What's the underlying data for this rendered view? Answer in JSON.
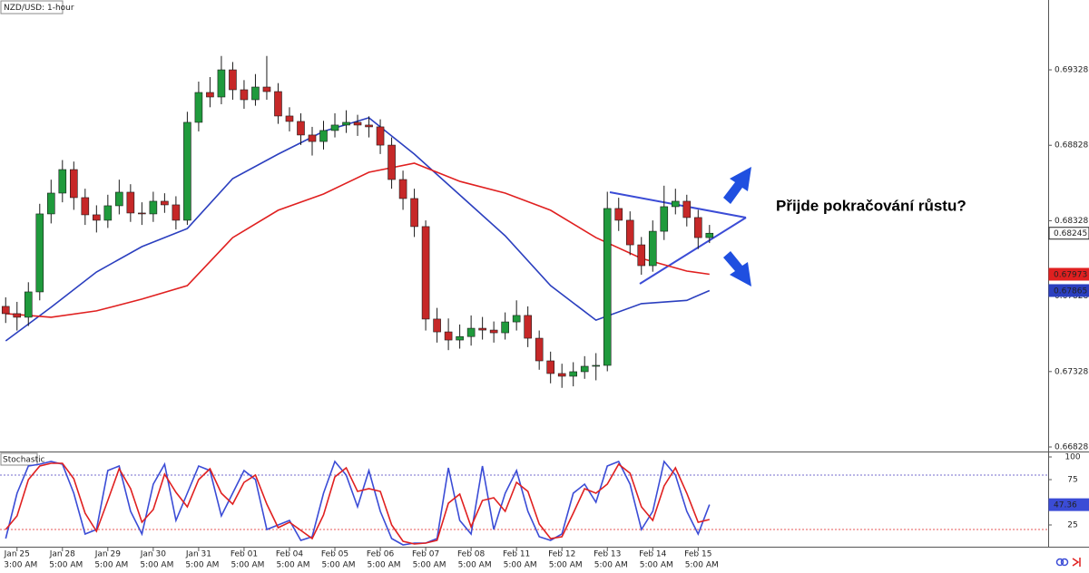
{
  "chart_data": [
    {
      "type": "candlestick",
      "title": "NZD/USD: 1-hour",
      "annotation": "Přijde pokračování růstu?",
      "up_color": "#1f9a3c",
      "down_color": "#c62828",
      "wick_color": "#1a1a1a",
      "xlim": [
        -3,
        551
      ],
      "ylim": [
        0.66804,
        0.69791
      ],
      "yticks": [
        0.66828,
        0.67328,
        0.67828,
        0.68328,
        0.68828,
        0.69328
      ],
      "xticks": [
        {
          "value": 6,
          "label": "Jan 25"
        },
        {
          "value": 30,
          "label": "Jan 28"
        },
        {
          "value": 54,
          "label": "Jan 29"
        },
        {
          "value": 78,
          "label": "Jan 30"
        },
        {
          "value": 102,
          "label": "Jan 31"
        },
        {
          "value": 126,
          "label": "Feb 01"
        },
        {
          "value": 150,
          "label": "Feb 04"
        },
        {
          "value": 174,
          "label": "Feb 05"
        },
        {
          "value": 198,
          "label": "Feb 06"
        },
        {
          "value": 222,
          "label": "Feb 07"
        },
        {
          "value": 246,
          "label": "Feb 08"
        },
        {
          "value": 270,
          "label": "Feb 11"
        },
        {
          "value": 294,
          "label": "Feb 12"
        },
        {
          "value": 318,
          "label": "Feb 13"
        },
        {
          "value": 342,
          "label": "Feb 14"
        },
        {
          "value": 366,
          "label": "Feb 15"
        }
      ],
      "xtick_sublabels": [
        "3:00 AM",
        "5:00 AM",
        "5:00 AM",
        "5:00 AM",
        "5:00 AM",
        "5:00 AM",
        "5:00 AM",
        "5:00 AM",
        "5:00 AM",
        "5:00 AM",
        "5:00 AM",
        "5:00 AM",
        "5:00 AM",
        "5:00 AM",
        "5:00 AM",
        "5:00 AM"
      ],
      "x": [
        0,
        6,
        12,
        18,
        24,
        30,
        36,
        42,
        48,
        54,
        60,
        66,
        72,
        78,
        84,
        90,
        96,
        102,
        108,
        114,
        120,
        126,
        132,
        138,
        144,
        150,
        156,
        162,
        168,
        174,
        180,
        186,
        192,
        198,
        204,
        210,
        216,
        222,
        228,
        234,
        240,
        246,
        252,
        258,
        264,
        270,
        276,
        282,
        288,
        294,
        300,
        306,
        312,
        318,
        324,
        330,
        336,
        342,
        348,
        354,
        360,
        366,
        372
      ],
      "open": [
        0.6776,
        0.67712,
        0.67688,
        0.67856,
        0.68373,
        0.68511,
        0.68667,
        0.68481,
        0.68367,
        0.68331,
        0.68427,
        0.68517,
        0.68379,
        0.68373,
        0.68457,
        0.68433,
        0.68331,
        0.6898,
        0.69178,
        0.69148,
        0.69328,
        0.69196,
        0.6913,
        0.69214,
        0.69184,
        0.69022,
        0.68986,
        0.68896,
        0.68853,
        0.68926,
        0.68962,
        0.6898,
        0.68962,
        0.6895,
        0.68829,
        0.68601,
        0.68475,
        0.68289,
        0.67676,
        0.67591,
        0.67537,
        0.6756,
        0.67615,
        0.67603,
        0.67585,
        0.67657,
        0.677,
        0.67549,
        0.67399,
        0.67315,
        0.67297,
        0.67327,
        0.67363,
        0.67369,
        0.68409,
        0.68331,
        0.68168,
        0.6803,
        0.68258,
        0.68421,
        0.68457,
        0.68349,
        0.68216
      ],
      "high": [
        0.6782,
        0.6779,
        0.6792,
        0.6844,
        0.686,
        0.6873,
        0.6872,
        0.6854,
        0.6843,
        0.685,
        0.686,
        0.6857,
        0.6845,
        0.6852,
        0.6851,
        0.6849,
        0.6905,
        0.6925,
        0.6928,
        0.6942,
        0.6938,
        0.6926,
        0.693,
        0.6942,
        0.6924,
        0.6908,
        0.6904,
        0.6895,
        0.6899,
        0.6904,
        0.6906,
        0.6903,
        0.6902,
        0.69,
        0.6888,
        0.6866,
        0.6854,
        0.6833,
        0.6775,
        0.6768,
        0.6764,
        0.677,
        0.6769,
        0.6766,
        0.6772,
        0.678,
        0.6776,
        0.676,
        0.6746,
        0.6738,
        0.6739,
        0.6743,
        0.6745,
        0.6852,
        0.6848,
        0.6839,
        0.6822,
        0.6833,
        0.6856,
        0.6854,
        0.685,
        0.684,
        0.683
      ],
      "low": [
        0.6765,
        0.676,
        0.6763,
        0.678,
        0.6831,
        0.6845,
        0.684,
        0.683,
        0.6825,
        0.6828,
        0.6837,
        0.6832,
        0.683,
        0.6832,
        0.6838,
        0.6827,
        0.683,
        0.6892,
        0.6908,
        0.691,
        0.6913,
        0.6907,
        0.6909,
        0.6913,
        0.6897,
        0.6892,
        0.6883,
        0.6876,
        0.688,
        0.6888,
        0.6891,
        0.6889,
        0.6888,
        0.6877,
        0.6854,
        0.684,
        0.6822,
        0.676,
        0.6752,
        0.6747,
        0.6748,
        0.675,
        0.6754,
        0.6752,
        0.6754,
        0.676,
        0.6749,
        0.6734,
        0.6725,
        0.6722,
        0.6723,
        0.6728,
        0.6727,
        0.6733,
        0.6826,
        0.681,
        0.6797,
        0.6799,
        0.682,
        0.6837,
        0.6829,
        0.6814,
        0.6818
      ],
      "close": [
        0.67712,
        0.67688,
        0.67856,
        0.68373,
        0.68511,
        0.68667,
        0.68481,
        0.68367,
        0.68331,
        0.68427,
        0.68517,
        0.68379,
        0.68373,
        0.68457,
        0.68433,
        0.68331,
        0.6898,
        0.69178,
        0.69148,
        0.69328,
        0.69196,
        0.6913,
        0.69214,
        0.69184,
        0.69022,
        0.68986,
        0.68896,
        0.68853,
        0.68926,
        0.68962,
        0.6898,
        0.68962,
        0.6895,
        0.68829,
        0.68601,
        0.68475,
        0.68289,
        0.67676,
        0.67591,
        0.67537,
        0.6756,
        0.67615,
        0.67603,
        0.67585,
        0.67657,
        0.677,
        0.67549,
        0.67399,
        0.67315,
        0.67297,
        0.67327,
        0.67363,
        0.67369,
        0.68409,
        0.68331,
        0.68168,
        0.6803,
        0.68258,
        0.68421,
        0.68457,
        0.68349,
        0.68216,
        0.68245
      ],
      "series": [
        {
          "color": "#2b3fbf",
          "x": [
            0,
            24,
            48,
            72,
            96,
            120,
            144,
            168,
            192,
            216,
            240,
            264,
            288,
            312,
            336,
            360,
            372
          ],
          "values": [
            0.67531,
            0.67754,
            0.67988,
            0.68156,
            0.68276,
            0.68607,
            0.68769,
            0.6892,
            0.6901,
            0.68769,
            0.68499,
            0.68228,
            0.67898,
            0.67669,
            0.67778,
            0.678,
            0.67865
          ]
        },
        {
          "color": "#e02020",
          "x": [
            0,
            24,
            48,
            72,
            96,
            120,
            144,
            168,
            192,
            216,
            240,
            264,
            288,
            312,
            336,
            360,
            372
          ],
          "values": [
            0.67712,
            0.67688,
            0.6773,
            0.67808,
            0.67898,
            0.68216,
            0.68397,
            0.68505,
            0.68649,
            0.68709,
            0.68589,
            0.68511,
            0.68397,
            0.68216,
            0.68078,
            0.67994,
            0.67973
          ]
        }
      ]
    },
    {
      "type": "line",
      "title": "Stochastic",
      "xlim": [
        -3,
        551
      ],
      "ylim": [
        0,
        104
      ],
      "yticks": [
        25,
        50,
        75,
        100
      ],
      "levels": [
        80,
        20
      ],
      "level_colors": [
        "#4a3fbf",
        "#e02020"
      ],
      "x": [
        0,
        6,
        12,
        18,
        24,
        30,
        36,
        42,
        48,
        54,
        60,
        66,
        72,
        78,
        84,
        90,
        96,
        102,
        108,
        114,
        120,
        126,
        132,
        138,
        144,
        150,
        156,
        162,
        168,
        174,
        180,
        186,
        192,
        198,
        204,
        210,
        216,
        222,
        228,
        234,
        240,
        246,
        252,
        258,
        264,
        270,
        276,
        282,
        288,
        294,
        300,
        306,
        312,
        318,
        324,
        330,
        336,
        342,
        348,
        354,
        360,
        366,
        372
      ],
      "series": [
        {
          "color": "#3b4cd6",
          "values": [
            10,
            60,
            90,
            92,
            95,
            92,
            60,
            15,
            20,
            85,
            90,
            40,
            15,
            70,
            92,
            30,
            60,
            90,
            85,
            35,
            60,
            85,
            75,
            20,
            25,
            30,
            8,
            12,
            60,
            95,
            80,
            45,
            85,
            40,
            10,
            3,
            5,
            5,
            10,
            88,
            30,
            15,
            90,
            20,
            60,
            85,
            40,
            12,
            8,
            15,
            60,
            70,
            50,
            90,
            95,
            70,
            20,
            40,
            95,
            80,
            40,
            15,
            47.36
          ]
        },
        {
          "color": "#e02020",
          "values": [
            20,
            35,
            75,
            90,
            93,
            93,
            76,
            38,
            18,
            52,
            87,
            65,
            28,
            42,
            81,
            61,
            45,
            75,
            87,
            60,
            48,
            72,
            80,
            48,
            22,
            28,
            19,
            10,
            36,
            78,
            88,
            62,
            65,
            62,
            25,
            7,
            4,
            5,
            8,
            49,
            59,
            23,
            52,
            55,
            40,
            72,
            62,
            26,
            10,
            12,
            38,
            65,
            60,
            70,
            92,
            82,
            45,
            30,
            68,
            88,
            60,
            28,
            31
          ]
        }
      ]
    }
  ]
}
